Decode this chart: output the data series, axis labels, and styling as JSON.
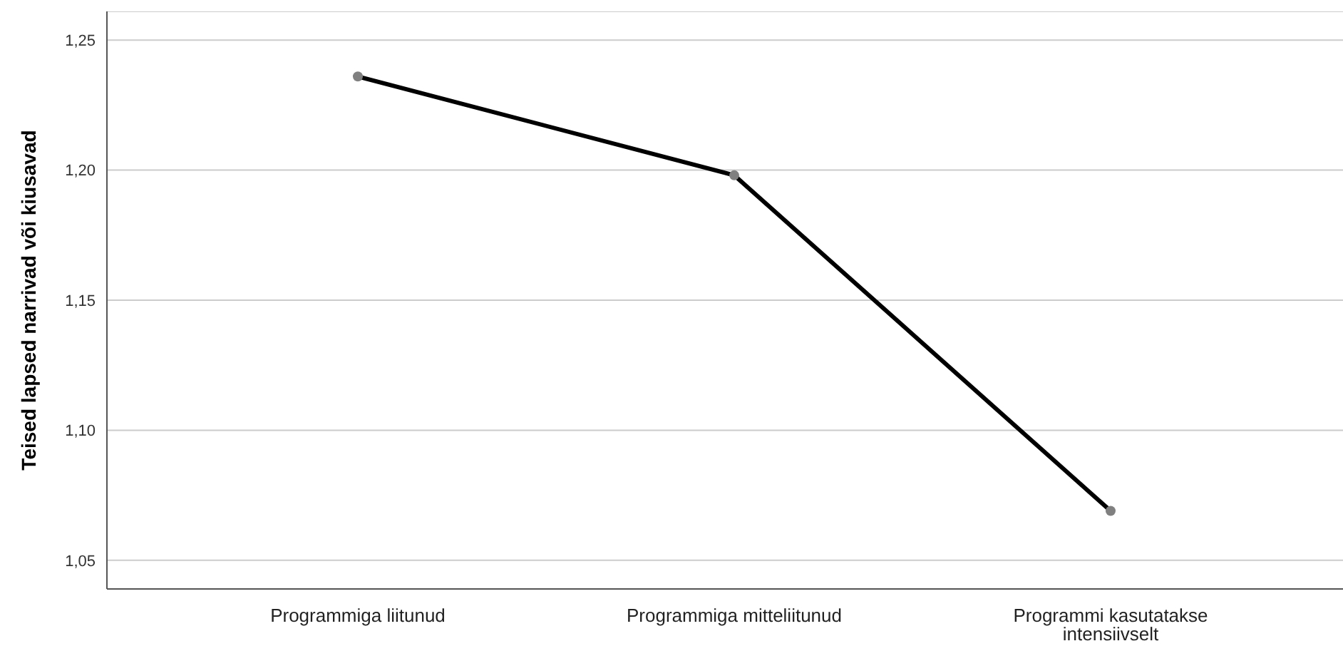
{
  "chart_data": {
    "type": "line",
    "ylabel": "Teised lapsed narrivad või kiusavad",
    "categories": [
      "Programmiga liitunud",
      "Programmiga mitteliitunud",
      "Programmi kasutatakse intensiivselt"
    ],
    "series": [
      {
        "color": "#000000",
        "values": [
          1.236,
          1.198,
          1.069
        ]
      }
    ],
    "marker": "circle",
    "ylim": [
      1.039,
      1.261
    ],
    "yticks": [
      {
        "value": 1.05,
        "label": "1,05"
      },
      {
        "value": 1.1,
        "label": "1,10"
      },
      {
        "value": 1.15,
        "label": "1,15"
      },
      {
        "value": 1.2,
        "label": "1,20"
      },
      {
        "value": 1.25,
        "label": "1,25"
      }
    ],
    "grid": "y"
  }
}
